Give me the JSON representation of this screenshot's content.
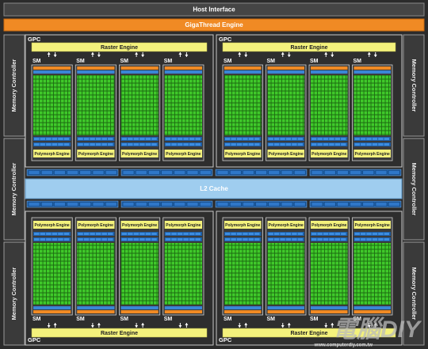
{
  "host_interface": "Host Interface",
  "gigathread_engine": "GigaThread Engine",
  "l2_cache": "L2 Cache",
  "memory_controllers": [
    "Memory Controller",
    "Memory Controller",
    "Memory Controller",
    "Memory Controller",
    "Memory Controller",
    "Memory Controller"
  ],
  "gpcs": [
    {
      "label": "GPC",
      "raster_engine": "Raster Engine",
      "sms": [
        {
          "label": "SM",
          "polymorph_engine": "Polymorph Engine"
        },
        {
          "label": "SM",
          "polymorph_engine": "Polymorph Engine"
        },
        {
          "label": "SM",
          "polymorph_engine": "Polymorph Engine"
        },
        {
          "label": "SM",
          "polymorph_engine": "Polymorph Engine"
        }
      ]
    },
    {
      "label": "GPC",
      "raster_engine": "Raster Engine",
      "sms": [
        {
          "label": "SM",
          "polymorph_engine": "Polymorph Engine"
        },
        {
          "label": "SM",
          "polymorph_engine": "Polymorph Engine"
        },
        {
          "label": "SM",
          "polymorph_engine": "Polymorph Engine"
        },
        {
          "label": "SM",
          "polymorph_engine": "Polymorph Engine"
        }
      ]
    },
    {
      "label": "GPC",
      "raster_engine": "Raster Engine",
      "sms": [
        {
          "label": "SM",
          "polymorph_engine": "Polymorph Engine"
        },
        {
          "label": "SM",
          "polymorph_engine": "Polymorph Engine"
        },
        {
          "label": "SM",
          "polymorph_engine": "Polymorph Engine"
        },
        {
          "label": "SM",
          "polymorph_engine": "Polymorph Engine"
        }
      ]
    },
    {
      "label": "GPC",
      "raster_engine": "Raster Engine",
      "sms": [
        {
          "label": "SM",
          "polymorph_engine": "Polymorph Engine"
        },
        {
          "label": "SM",
          "polymorph_engine": "Polymorph Engine"
        },
        {
          "label": "SM",
          "polymorph_engine": "Polymorph Engine"
        },
        {
          "label": "SM",
          "polymorph_engine": "Polymorph Engine"
        }
      ]
    }
  ],
  "watermark": {
    "logo": "電腦DIY",
    "url": "www.computerdiy.com.tw"
  }
}
